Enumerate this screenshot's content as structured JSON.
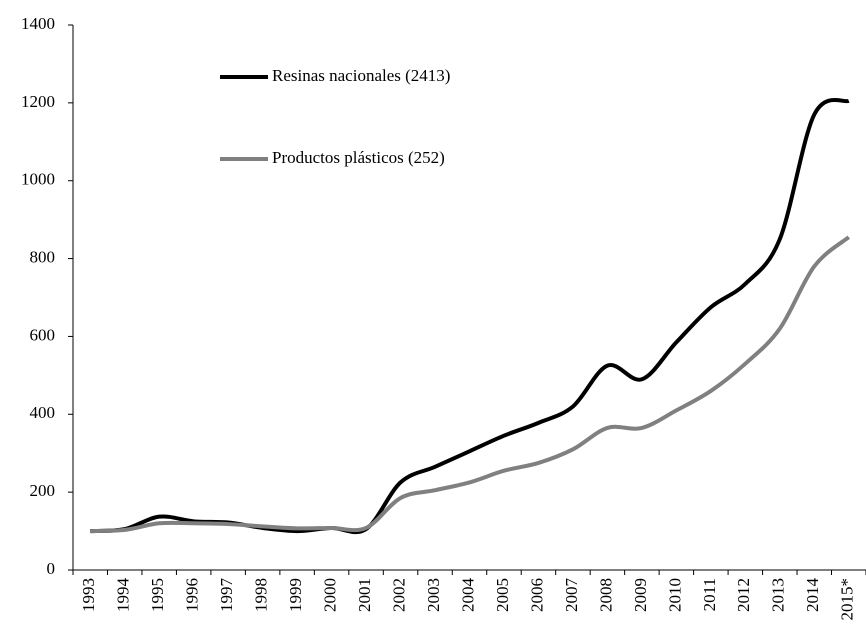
{
  "chart_data": {
    "type": "line",
    "categories": [
      "1993",
      "1994",
      "1995",
      "1996",
      "1997",
      "1998",
      "1999",
      "2000",
      "2001",
      "2002",
      "2003",
      "2004",
      "2005",
      "2006",
      "2007",
      "2008",
      "2009",
      "2010",
      "2011",
      "2012",
      "2013",
      "2014",
      "2015*"
    ],
    "series": [
      {
        "name": "Resinas nacionales (2413)",
        "color": "#000000",
        "values": [
          100,
          105,
          137,
          125,
          122,
          108,
          100,
          108,
          105,
          225,
          265,
          305,
          345,
          378,
          420,
          525,
          490,
          585,
          675,
          735,
          850,
          1170,
          1205
        ]
      },
      {
        "name": "Productos plásticos (252)",
        "color": "#808080",
        "values": [
          100,
          103,
          120,
          120,
          118,
          112,
          107,
          108,
          108,
          185,
          205,
          225,
          255,
          275,
          310,
          365,
          365,
          410,
          460,
          530,
          620,
          780,
          855
        ]
      }
    ],
    "ylim": [
      0,
      1400
    ],
    "yticks": [
      0,
      200,
      400,
      600,
      800,
      1000,
      1200,
      1400
    ],
    "grid": false,
    "legend": "upper left"
  }
}
